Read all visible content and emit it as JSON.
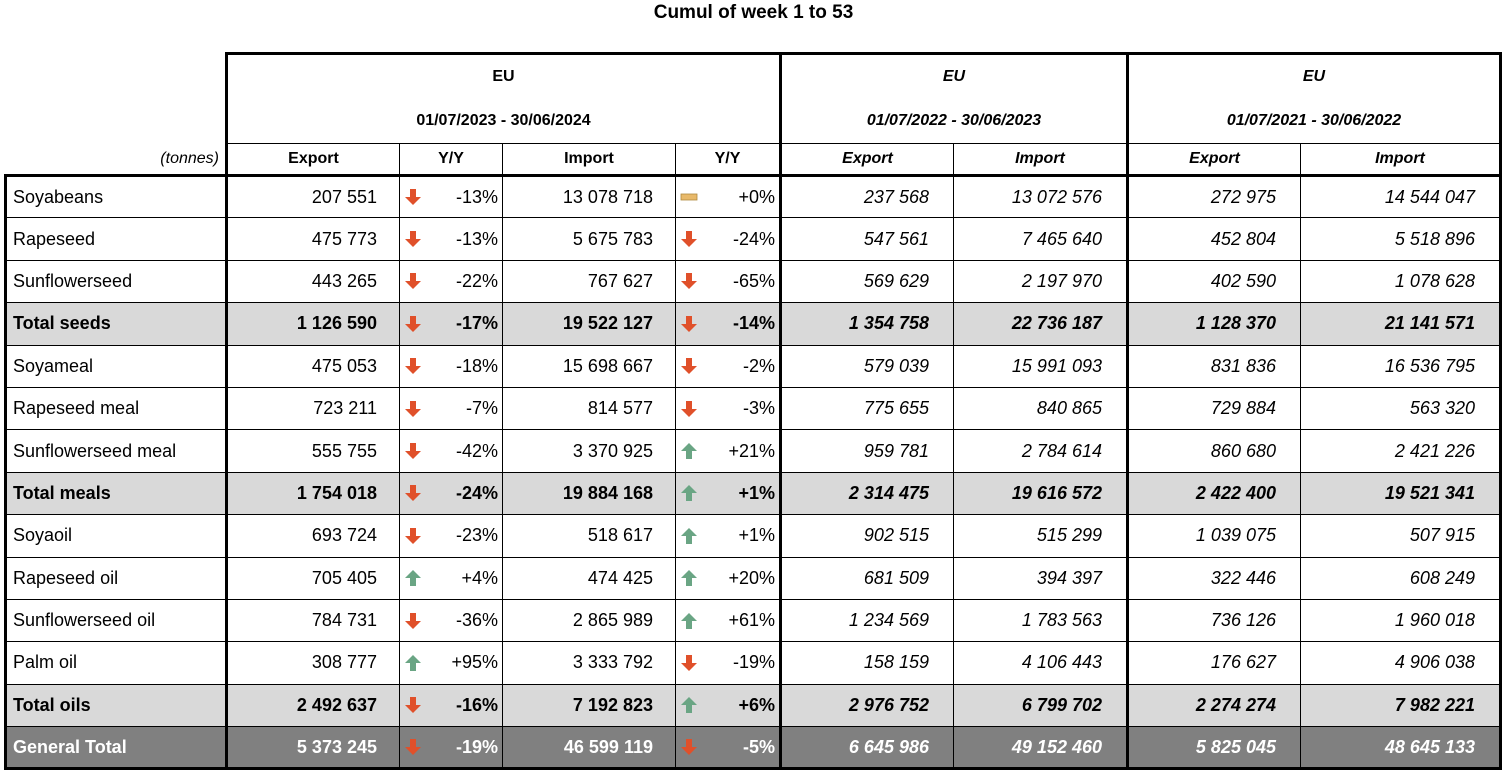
{
  "title": "Cumul of week 1 to 53",
  "unit": "(tonnes)",
  "periods": [
    {
      "name": "EU",
      "range": "01/07/2023 - 30/06/2024",
      "cols": [
        "Export",
        "Y/Y",
        "Import",
        "Y/Y"
      ]
    },
    {
      "name": "EU",
      "range": "01/07/2022 - 30/06/2023",
      "cols": [
        "Export",
        "Import"
      ]
    },
    {
      "name": "EU",
      "range": "01/07/2021 - 30/06/2022",
      "cols": [
        "Export",
        "Import"
      ]
    }
  ],
  "rows": [
    {
      "label": "Soyabeans",
      "exp": "207 551",
      "exp_yy": "-13%",
      "exp_dir": "down",
      "imp": "13 078 718",
      "imp_yy": "+0%",
      "imp_dir": "flat",
      "exp22": "237 568",
      "imp22": "13 072 576",
      "exp21": "272 975",
      "imp21": "14 544 047",
      "kind": "normal"
    },
    {
      "label": "Rapeseed",
      "exp": "475 773",
      "exp_yy": "-13%",
      "exp_dir": "down",
      "imp": "5 675 783",
      "imp_yy": "-24%",
      "imp_dir": "down",
      "exp22": "547 561",
      "imp22": "7 465 640",
      "exp21": "452 804",
      "imp21": "5 518 896",
      "kind": "normal"
    },
    {
      "label": "Sunflowerseed",
      "exp": "443 265",
      "exp_yy": "-22%",
      "exp_dir": "down",
      "imp": "767 627",
      "imp_yy": "-65%",
      "imp_dir": "down",
      "exp22": "569 629",
      "imp22": "2 197 970",
      "exp21": "402 590",
      "imp21": "1 078 628",
      "kind": "normal"
    },
    {
      "label": "Total seeds",
      "exp": "1 126 590",
      "exp_yy": "-17%",
      "exp_dir": "down",
      "imp": "19 522 127",
      "imp_yy": "-14%",
      "imp_dir": "down",
      "exp22": "1 354 758",
      "imp22": "22 736 187",
      "exp21": "1 128 370",
      "imp21": "21 141 571",
      "kind": "total"
    },
    {
      "label": "Soyameal",
      "exp": "475 053",
      "exp_yy": "-18%",
      "exp_dir": "down",
      "imp": "15 698 667",
      "imp_yy": "-2%",
      "imp_dir": "down",
      "exp22": "579 039",
      "imp22": "15 991 093",
      "exp21": "831 836",
      "imp21": "16 536 795",
      "kind": "normal"
    },
    {
      "label": "Rapeseed meal",
      "exp": "723 211",
      "exp_yy": "-7%",
      "exp_dir": "down",
      "imp": "814 577",
      "imp_yy": "-3%",
      "imp_dir": "down",
      "exp22": "775 655",
      "imp22": "840 865",
      "exp21": "729 884",
      "imp21": "563 320",
      "kind": "normal"
    },
    {
      "label": "Sunflowerseed meal",
      "exp": "555 755",
      "exp_yy": "-42%",
      "exp_dir": "down",
      "imp": "3 370 925",
      "imp_yy": "+21%",
      "imp_dir": "up",
      "exp22": "959 781",
      "imp22": "2 784 614",
      "exp21": "860 680",
      "imp21": "2 421 226",
      "kind": "normal"
    },
    {
      "label": "Total meals",
      "exp": "1 754 018",
      "exp_yy": "-24%",
      "exp_dir": "down",
      "imp": "19 884 168",
      "imp_yy": "+1%",
      "imp_dir": "up",
      "exp22": "2 314 475",
      "imp22": "19 616 572",
      "exp21": "2 422 400",
      "imp21": "19 521 341",
      "kind": "total"
    },
    {
      "label": "Soyaoil",
      "exp": "693 724",
      "exp_yy": "-23%",
      "exp_dir": "down",
      "imp": "518 617",
      "imp_yy": "+1%",
      "imp_dir": "up",
      "exp22": "902 515",
      "imp22": "515 299",
      "exp21": "1 039 075",
      "imp21": "507 915",
      "kind": "normal"
    },
    {
      "label": "Rapeseed oil",
      "exp": "705 405",
      "exp_yy": "+4%",
      "exp_dir": "up",
      "imp": "474 425",
      "imp_yy": "+20%",
      "imp_dir": "up",
      "exp22": "681 509",
      "imp22": "394 397",
      "exp21": "322 446",
      "imp21": "608 249",
      "kind": "normal"
    },
    {
      "label": "Sunflowerseed oil",
      "exp": "784 731",
      "exp_yy": "-36%",
      "exp_dir": "down",
      "imp": "2 865 989",
      "imp_yy": "+61%",
      "imp_dir": "up",
      "exp22": "1 234 569",
      "imp22": "1 783 563",
      "exp21": "736 126",
      "imp21": "1 960 018",
      "kind": "normal"
    },
    {
      "label": "Palm oil",
      "exp": "308 777",
      "exp_yy": "+95%",
      "exp_dir": "up",
      "imp": "3 333 792",
      "imp_yy": "-19%",
      "imp_dir": "down",
      "exp22": "158 159",
      "imp22": "4 106 443",
      "exp21": "176 627",
      "imp21": "4 906 038",
      "kind": "normal"
    },
    {
      "label": "Total oils",
      "exp": "2 492 637",
      "exp_yy": "-16%",
      "exp_dir": "down",
      "imp": "7 192 823",
      "imp_yy": "+6%",
      "imp_dir": "up",
      "exp22": "2 976 752",
      "imp22": "6 799 702",
      "exp21": "2 274 274",
      "imp21": "7 982 221",
      "kind": "total"
    },
    {
      "label": "General Total",
      "exp": "5 373 245",
      "exp_yy": "-19%",
      "exp_dir": "down",
      "imp": "46 599 119",
      "imp_yy": "-5%",
      "imp_dir": "down",
      "exp22": "6 645 986",
      "imp22": "49 152 460",
      "exp21": "5 825 045",
      "imp21": "48 645 133",
      "kind": "grand"
    }
  ],
  "colors": {
    "down": "#e0502a",
    "up": "#6aa584",
    "flat": "#e8b96a",
    "total_bg": "#d9d9d9",
    "grand_bg": "#808080"
  }
}
